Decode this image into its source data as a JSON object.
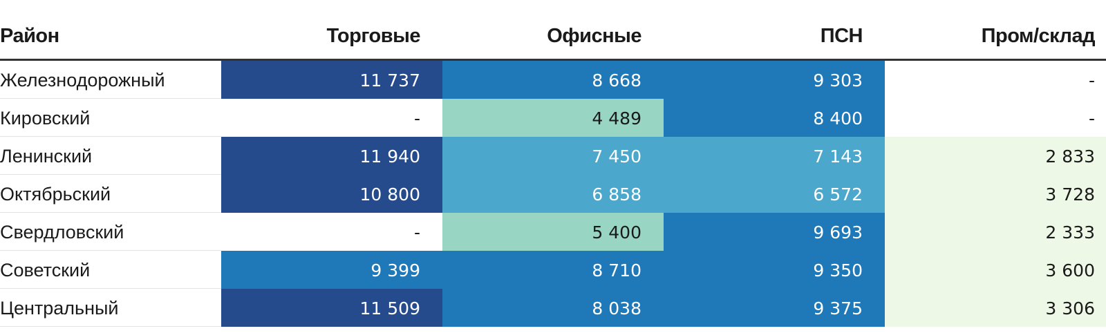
{
  "chart_data": {
    "type": "table",
    "columns": [
      "Район",
      "Торговые",
      "Офисные",
      "ПСН",
      "Пром/склад"
    ],
    "rows": [
      {
        "district": "Железнодорожный",
        "values": [
          "11 737",
          "8 668",
          "9 303",
          "-"
        ]
      },
      {
        "district": "Кировский",
        "values": [
          "-",
          "4 489",
          "8 400",
          "-"
        ]
      },
      {
        "district": "Ленинский",
        "values": [
          "11 940",
          "7 450",
          "7 143",
          "2 833"
        ]
      },
      {
        "district": "Октябрьский",
        "values": [
          "10 800",
          "6 858",
          "6 572",
          "3 728"
        ]
      },
      {
        "district": "Свердловский",
        "values": [
          "-",
          "5 400",
          "9 693",
          "2 333"
        ]
      },
      {
        "district": "Советский",
        "values": [
          "9 399",
          "8 710",
          "9 350",
          "3 600"
        ]
      },
      {
        "district": "Центральный",
        "values": [
          "11 509",
          "8 038",
          "9 375",
          "3 306"
        ]
      }
    ],
    "colors": {
      "darkest": "#264b8c",
      "dark": "#1f78b8",
      "medium": "#4ba7cb",
      "light": "#98d6c3",
      "lightest": "#eef8e6",
      "empty": "#ffffff",
      "text_on_dark": "#ffffff",
      "text_on_light": "#1a1a1a"
    }
  }
}
